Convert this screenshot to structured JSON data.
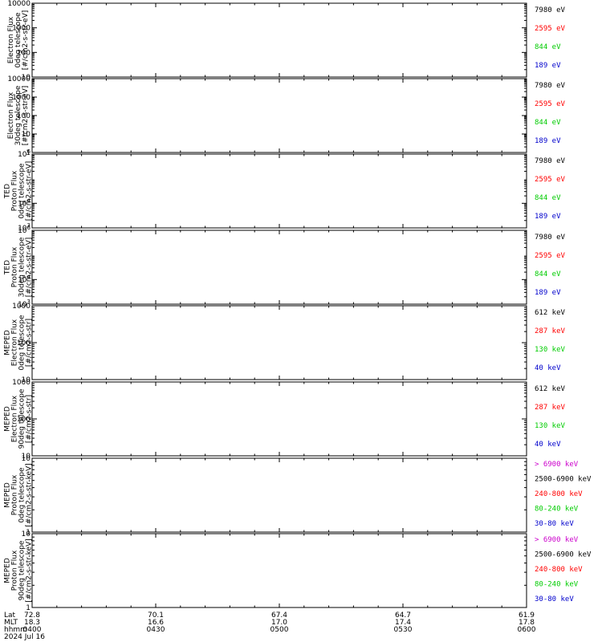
{
  "chart_data": {
    "type": "line",
    "date": "2024 Jul 16",
    "x_row_labels": [
      "Lat",
      "MLT",
      "hhmm"
    ],
    "x_columns": [
      {
        "lat": "72.8",
        "mlt": "18.3",
        "hhmm": "0400"
      },
      {
        "lat": "70.1",
        "mlt": "16.6",
        "hhmm": "0430"
      },
      {
        "lat": "67.4",
        "mlt": "17.0",
        "hhmm": "0500"
      },
      {
        "lat": "64.7",
        "mlt": "17.4",
        "hhmm": "0530"
      },
      {
        "lat": "61.9",
        "mlt": "17.8",
        "hhmm": "0600"
      }
    ],
    "panels": [
      {
        "ylabel": [
          "Electron Flux",
          "0deg telescope",
          "[#/cm2-s-str-eV]"
        ],
        "scale": "log",
        "ylim": [
          10,
          10000
        ],
        "ticks": [
          {
            "v": 10,
            "label": "10"
          },
          {
            "v": 100,
            "label": "100"
          },
          {
            "v": 1000,
            "label": "1000"
          },
          {
            "v": 10000,
            "label": "10000"
          }
        ],
        "legend": [
          {
            "text": "7980 eV",
            "color": "#000000"
          },
          {
            "text": "2595 eV",
            "color": "#ff0000"
          },
          {
            "text": "844 eV",
            "color": "#00cc00"
          },
          {
            "text": "189 eV",
            "color": "#0000cc"
          }
        ]
      },
      {
        "ylabel": [
          "Electron Flux",
          "30deg telescope",
          "[#/cm2-s-str-eV]"
        ],
        "scale": "log",
        "ylim": [
          1,
          10000
        ],
        "ticks": [
          {
            "v": 1,
            "label": "1"
          },
          {
            "v": 10,
            "label": "10"
          },
          {
            "v": 100,
            "label": "100"
          },
          {
            "v": 1000,
            "label": "1000"
          },
          {
            "v": 10000,
            "label": "10000"
          }
        ],
        "legend": [
          {
            "text": "7980 eV",
            "color": "#000000"
          },
          {
            "text": "2595 eV",
            "color": "#ff0000"
          },
          {
            "text": "844 eV",
            "color": "#00cc00"
          },
          {
            "text": "189 eV",
            "color": "#0000cc"
          }
        ]
      },
      {
        "ylabel": [
          "TED",
          "Proton Flux",
          "0deg telescope",
          "[#/cm2-s-str-eV]"
        ],
        "scale": "log",
        "ylim": [
          1000,
          1000000
        ],
        "ticks": [
          {
            "v": 1000,
            "label": "10",
            "sup": "3"
          },
          {
            "v": 10000,
            "label": "10",
            "sup": "4"
          },
          {
            "v": 1000000,
            "label": "10",
            "sup": "6"
          }
        ],
        "legend": [
          {
            "text": "7980 eV",
            "color": "#000000"
          },
          {
            "text": "2595 eV",
            "color": "#ff0000"
          },
          {
            "text": "844 eV",
            "color": "#00cc00"
          },
          {
            "text": "189 eV",
            "color": "#0000cc"
          }
        ]
      },
      {
        "ylabel": [
          "TED",
          "Proton Flux",
          "30deg telescope",
          "[#/cm2-s-str-eV]"
        ],
        "scale": "log",
        "ylim": [
          1000,
          1000000
        ],
        "ticks": [
          {
            "v": 1000,
            "label": "10",
            "sup": "3"
          },
          {
            "v": 10000,
            "label": "10",
            "sup": "4"
          },
          {
            "v": 1000000,
            "label": "10",
            "sup": "6"
          }
        ],
        "legend": [
          {
            "text": "7980 eV",
            "color": "#000000"
          },
          {
            "text": "2595 eV",
            "color": "#ff0000"
          },
          {
            "text": "844 eV",
            "color": "#00cc00"
          },
          {
            "text": "189 eV",
            "color": "#0000cc"
          }
        ]
      },
      {
        "ylabel": [
          "MEPED",
          "Electron Flux",
          "0deg telescope",
          "[#/cm2-s-str]"
        ],
        "scale": "log",
        "ylim": [
          10,
          1000
        ],
        "ticks": [
          {
            "v": 10,
            "label": "10"
          },
          {
            "v": 100,
            "label": "100"
          },
          {
            "v": 1000,
            "label": "1000"
          }
        ],
        "legend": [
          {
            "text": "612 keV",
            "color": "#000000"
          },
          {
            "text": "287 keV",
            "color": "#ff0000"
          },
          {
            "text": "130 keV",
            "color": "#00cc00"
          },
          {
            "text": "40 keV",
            "color": "#0000cc"
          }
        ]
      },
      {
        "ylabel": [
          "MEPED",
          "Electron Flux",
          "90deg telescope",
          "[#/cm2-s-str]"
        ],
        "scale": "log",
        "ylim": [
          10,
          1000
        ],
        "ticks": [
          {
            "v": 10,
            "label": "10"
          },
          {
            "v": 100,
            "label": "100"
          },
          {
            "v": 1000,
            "label": "1000"
          }
        ],
        "legend": [
          {
            "text": "612 keV",
            "color": "#000000"
          },
          {
            "text": "287 keV",
            "color": "#ff0000"
          },
          {
            "text": "130 keV",
            "color": "#00cc00"
          },
          {
            "text": "40 keV",
            "color": "#0000cc"
          }
        ]
      },
      {
        "ylabel": [
          "MEPED",
          "Proton Flux",
          "0deg telescope",
          "[#/cm2-s-str-keV]"
        ],
        "scale": "log",
        "ylim": [
          1,
          10
        ],
        "ticks": [
          {
            "v": 1,
            "label": "1"
          },
          {
            "v": 10,
            "label": "10"
          }
        ],
        "legend": [
          {
            "text": "> 6900 keV",
            "color": "#cc00cc"
          },
          {
            "text": "2500-6900 keV",
            "color": "#000000"
          },
          {
            "text": "240-800 keV",
            "color": "#ff0000"
          },
          {
            "text": "80-240 keV",
            "color": "#00cc00"
          },
          {
            "text": "30-80 keV",
            "color": "#0000cc"
          }
        ]
      },
      {
        "ylabel": [
          "MEPED",
          "Proton Flux",
          "90deg telescope",
          "[#/cm2-s-str-keV]"
        ],
        "scale": "log",
        "ylim": [
          1,
          10
        ],
        "ticks": [
          {
            "v": 1,
            "label": "1"
          },
          {
            "v": 10,
            "label": "10"
          }
        ],
        "legend": [
          {
            "text": "> 6900 keV",
            "color": "#cc00cc"
          },
          {
            "text": "2500-6900 keV",
            "color": "#000000"
          },
          {
            "text": "240-800 keV",
            "color": "#ff0000"
          },
          {
            "text": "80-240 keV",
            "color": "#00cc00"
          },
          {
            "text": "30-80 keV",
            "color": "#0000cc"
          }
        ]
      }
    ]
  }
}
